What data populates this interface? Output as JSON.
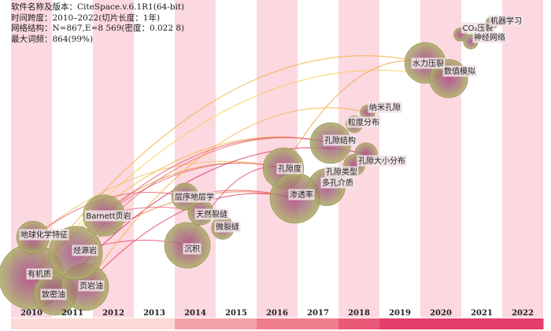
{
  "info": {
    "software": "软件名称及版本：CiteSpace.v.6.1R1(64-bit)",
    "timespan": "时间跨度：2010–2022(切片长度：1年)",
    "network": "网络结构：N=867,E=8 569(密度：0.022 8)",
    "maxfreq": "最大词频：864(99%)"
  },
  "years": [
    "2010",
    "2011",
    "2012",
    "2013",
    "2014",
    "2015",
    "2016",
    "2017",
    "2018",
    "2019",
    "2020",
    "2021",
    "2022"
  ],
  "timeline_colors": [
    "#fcd9d6",
    "#fcd9d6",
    "#fcd9d6",
    "#fcd9d6",
    "#f4a3a8",
    "#f4a3a8",
    "#ef7f8d",
    "#ef7f8d",
    "#ea5a78",
    "#e33e6c",
    "#e33e6c",
    "#e33e6c",
    "#e33e6c"
  ],
  "band_color": "#fcd8e0",
  "node_color_outer": "#b0b06a",
  "node_color_inner": "#b04080",
  "keywords": [
    {
      "label": "有机质",
      "year": 2010,
      "freq": 864
    },
    {
      "label": "致密油",
      "year": 2011,
      "freq": 330
    },
    {
      "label": "页岩油",
      "year": 2011,
      "freq": 420
    },
    {
      "label": "地球化学特征",
      "year": 2010,
      "freq": 180
    },
    {
      "label": "烃源岩",
      "year": 2011,
      "freq": 560
    },
    {
      "label": "Barnett页岩",
      "year": 2012,
      "freq": 310
    },
    {
      "label": "沉积",
      "year": 2014,
      "freq": 390
    },
    {
      "label": "层序地层学",
      "year": 2014,
      "freq": 110
    },
    {
      "label": "天然裂缝",
      "year": 2014,
      "freq": 95
    },
    {
      "label": "微裂缝",
      "year": 2015,
      "freq": 70
    },
    {
      "label": "孔隙度",
      "year": 2016,
      "freq": 300
    },
    {
      "label": "渗透率",
      "year": 2017,
      "freq": 480
    },
    {
      "label": "多孔介质",
      "year": 2017,
      "freq": 240
    },
    {
      "label": "孔隙类型",
      "year": 2018,
      "freq": 60
    },
    {
      "label": "孔隙结构",
      "year": 2018,
      "freq": 300
    },
    {
      "label": "孔隙大小分布",
      "year": 2018,
      "freq": 70
    },
    {
      "label": "粒度分布",
      "year": 2018,
      "freq": 30
    },
    {
      "label": "纳米孔隙",
      "year": 2018,
      "freq": 20
    },
    {
      "label": "水力压裂",
      "year": 2020,
      "freq": 300
    },
    {
      "label": "数值模拟",
      "year": 2020,
      "freq": 260
    },
    {
      "label": "CO₂压裂",
      "year": 2021,
      "freq": 15
    },
    {
      "label": "神经网络",
      "year": 2021,
      "freq": 20
    },
    {
      "label": "机器学习",
      "year": 2022,
      "freq": 10
    }
  ]
}
